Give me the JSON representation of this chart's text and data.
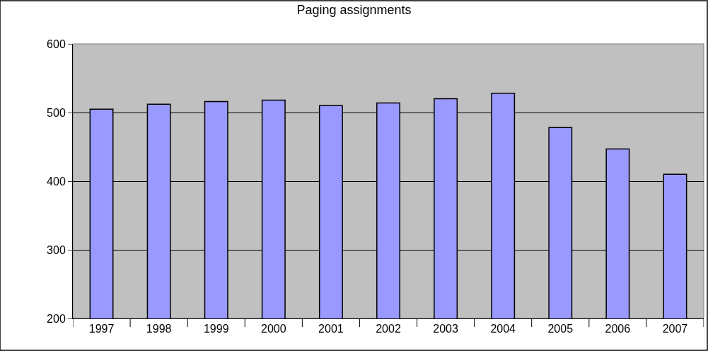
{
  "chart_data": {
    "type": "bar",
    "title": "Paging assignments",
    "categories": [
      "1997",
      "1998",
      "1999",
      "2000",
      "2001",
      "2002",
      "2003",
      "2004",
      "2005",
      "2006",
      "2007"
    ],
    "values": [
      505,
      512,
      516,
      518,
      510,
      514,
      520,
      528,
      478,
      447,
      410
    ],
    "color": "#9999ff",
    "ylim": [
      200,
      600
    ],
    "yticks": [
      200,
      300,
      400,
      500,
      600
    ],
    "grid": "y",
    "legend": false
  }
}
